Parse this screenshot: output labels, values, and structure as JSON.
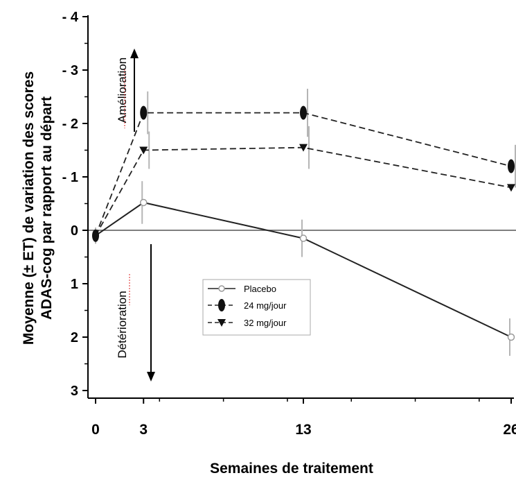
{
  "chart_data": {
    "type": "line",
    "xlabel": "Semaines de traitement",
    "ylabel": "Moyenne (± ET) de variation des scores\nADAS-cog par rapport au départ",
    "ylim": [
      3,
      -4
    ],
    "yaxis_reversed": true,
    "xlim": [
      0,
      26
    ],
    "x_ticks": [
      0,
      3,
      13,
      26
    ],
    "x_tick_labels": [
      "0",
      "3",
      "13",
      "26"
    ],
    "y_ticks": [
      -4,
      -3,
      -2,
      -1,
      0,
      1,
      2,
      3
    ],
    "y_tick_labels": [
      "- 4",
      "- 3",
      "- 2",
      "- 1",
      "0",
      "1",
      "2",
      "3"
    ],
    "series": [
      {
        "name": "Placebo",
        "marker": "open-circle",
        "line": "solid",
        "x": [
          0,
          3,
          13,
          26
        ],
        "y": [
          0.1,
          -0.52,
          0.15,
          2.0
        ],
        "err": [
          0.15,
          0.4,
          0.35,
          0.35
        ]
      },
      {
        "name": "24 mg/jour",
        "marker": "filled-ellipse",
        "line": "dashed",
        "x": [
          0,
          3,
          13,
          26
        ],
        "y": [
          0.1,
          -2.2,
          -2.2,
          -1.2
        ],
        "err": [
          0.15,
          0.4,
          0.45,
          0.4
        ]
      },
      {
        "name": "32 mg/jour",
        "marker": "filled-triangle-down",
        "line": "dashed",
        "x": [
          0,
          3,
          13,
          26
        ],
        "y": [
          0.1,
          -1.5,
          -1.55,
          -0.8
        ],
        "err": [
          0.15,
          0.35,
          0.4,
          0.4
        ]
      }
    ],
    "annotations": {
      "up": "Amélioration",
      "down": "Détérioration"
    },
    "legend_position": "center"
  }
}
